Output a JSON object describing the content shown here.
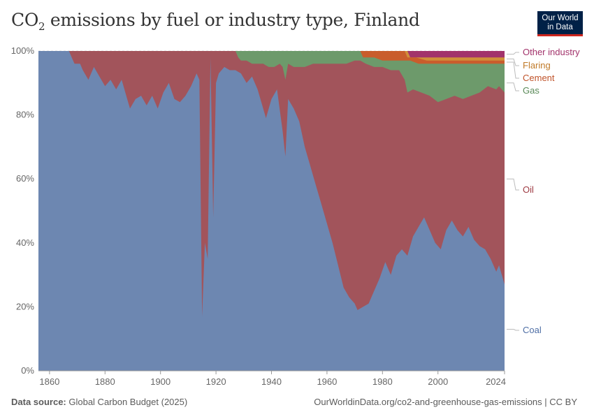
{
  "header": {
    "title_main": "CO",
    "title_sub": "2",
    "title_rest": " emissions by fuel or industry type, Finland"
  },
  "logo": {
    "line1": "Our World",
    "line2": "in Data"
  },
  "footer": {
    "source_label": "Data source:",
    "source_value": " Global Carbon Budget (2025)",
    "url": "OurWorldinData.org/co2-and-greenhouse-gas-emissions | CC BY"
  },
  "chart_data": {
    "type": "area",
    "stacked": true,
    "normalized": true,
    "x_ticks": [
      1860,
      1880,
      1900,
      1920,
      1940,
      1960,
      1980,
      2000,
      2024
    ],
    "y_ticks": [
      "0%",
      "20%",
      "40%",
      "60%",
      "80%",
      "100%"
    ],
    "xlim": [
      1856,
      2024
    ],
    "ylim": [
      0,
      100
    ],
    "grid": "horizontal dashed",
    "legend_placement": "right",
    "series": [
      {
        "name": "Coal",
        "color": "#6d87b1",
        "points": [
          [
            1856,
            100
          ],
          [
            1867,
            100
          ],
          [
            1868,
            98
          ],
          [
            1869,
            96
          ],
          [
            1871,
            96
          ],
          [
            1872,
            94
          ],
          [
            1874,
            91
          ],
          [
            1876,
            95
          ],
          [
            1878,
            92
          ],
          [
            1880,
            89
          ],
          [
            1882,
            91
          ],
          [
            1884,
            88
          ],
          [
            1886,
            91
          ],
          [
            1888,
            85
          ],
          [
            1889,
            82
          ],
          [
            1891,
            85
          ],
          [
            1893,
            86
          ],
          [
            1895,
            83
          ],
          [
            1897,
            86
          ],
          [
            1899,
            82
          ],
          [
            1901,
            87
          ],
          [
            1903,
            90
          ],
          [
            1905,
            85
          ],
          [
            1907,
            84
          ],
          [
            1909,
            86
          ],
          [
            1911,
            89
          ],
          [
            1913,
            93
          ],
          [
            1914,
            91
          ],
          [
            1915,
            17
          ],
          [
            1916,
            40
          ],
          [
            1917,
            35
          ],
          [
            1918,
            98
          ],
          [
            1919,
            48
          ],
          [
            1920,
            90
          ],
          [
            1921,
            93
          ],
          [
            1923,
            95
          ],
          [
            1925,
            94
          ],
          [
            1927,
            94
          ],
          [
            1929,
            93
          ],
          [
            1931,
            90
          ],
          [
            1933,
            92
          ],
          [
            1935,
            88
          ],
          [
            1937,
            82
          ],
          [
            1938,
            79
          ],
          [
            1940,
            85
          ],
          [
            1942,
            88
          ],
          [
            1944,
            75
          ],
          [
            1945,
            67
          ],
          [
            1946,
            85
          ],
          [
            1948,
            82
          ],
          [
            1950,
            78
          ],
          [
            1952,
            70
          ],
          [
            1954,
            64
          ],
          [
            1956,
            58
          ],
          [
            1958,
            52
          ],
          [
            1960,
            46
          ],
          [
            1962,
            40
          ],
          [
            1964,
            33
          ],
          [
            1966,
            26
          ],
          [
            1968,
            23
          ],
          [
            1970,
            21
          ],
          [
            1971,
            19
          ],
          [
            1973,
            20
          ],
          [
            1975,
            21
          ],
          [
            1977,
            25
          ],
          [
            1979,
            29
          ],
          [
            1981,
            34
          ],
          [
            1983,
            30
          ],
          [
            1985,
            36
          ],
          [
            1987,
            38
          ],
          [
            1989,
            36
          ],
          [
            1991,
            42
          ],
          [
            1993,
            45
          ],
          [
            1995,
            48
          ],
          [
            1997,
            44
          ],
          [
            1999,
            40
          ],
          [
            2001,
            38
          ],
          [
            2003,
            44
          ],
          [
            2005,
            47
          ],
          [
            2007,
            44
          ],
          [
            2009,
            42
          ],
          [
            2011,
            45
          ],
          [
            2013,
            41
          ],
          [
            2015,
            39
          ],
          [
            2017,
            38
          ],
          [
            2019,
            35
          ],
          [
            2021,
            31
          ],
          [
            2022,
            33
          ],
          [
            2024,
            27
          ]
        ]
      },
      {
        "name": "Oil",
        "color": "#a2545b",
        "points": [
          [
            1856,
            100
          ],
          [
            1927,
            100
          ],
          [
            1928,
            98
          ],
          [
            1929,
            97
          ],
          [
            1931,
            97
          ],
          [
            1933,
            96
          ],
          [
            1935,
            96
          ],
          [
            1937,
            96
          ],
          [
            1939,
            95
          ],
          [
            1941,
            95
          ],
          [
            1943,
            96
          ],
          [
            1944,
            95
          ],
          [
            1945,
            91
          ],
          [
            1946,
            96
          ],
          [
            1948,
            95
          ],
          [
            1950,
            95
          ],
          [
            1952,
            95
          ],
          [
            1955,
            96
          ],
          [
            1958,
            96
          ],
          [
            1961,
            96
          ],
          [
            1964,
            96
          ],
          [
            1967,
            96
          ],
          [
            1970,
            97
          ],
          [
            1972,
            97
          ],
          [
            1974,
            96
          ],
          [
            1977,
            95
          ],
          [
            1980,
            95
          ],
          [
            1983,
            94
          ],
          [
            1986,
            94
          ],
          [
            1988,
            91
          ],
          [
            1989,
            87
          ],
          [
            1991,
            88
          ],
          [
            1994,
            87
          ],
          [
            1997,
            86
          ],
          [
            2000,
            84
          ],
          [
            2003,
            85
          ],
          [
            2006,
            86
          ],
          [
            2009,
            85
          ],
          [
            2012,
            86
          ],
          [
            2015,
            87
          ],
          [
            2018,
            89
          ],
          [
            2021,
            88
          ],
          [
            2022,
            89
          ],
          [
            2024,
            87
          ]
        ]
      },
      {
        "name": "Gas",
        "color": "#6d9a6b",
        "points": [
          [
            1856,
            100
          ],
          [
            1972,
            100
          ],
          [
            1973,
            98
          ],
          [
            1977,
            98
          ],
          [
            1980,
            97
          ],
          [
            1983,
            97
          ],
          [
            1986,
            97
          ],
          [
            1989,
            97
          ],
          [
            1990,
            97
          ],
          [
            1993,
            96
          ],
          [
            1996,
            96
          ],
          [
            1999,
            96
          ],
          [
            2002,
            96
          ],
          [
            2005,
            96
          ],
          [
            2008,
            96
          ],
          [
            2011,
            96
          ],
          [
            2014,
            96
          ],
          [
            2017,
            96
          ],
          [
            2020,
            96
          ],
          [
            2022,
            96
          ],
          [
            2024,
            96
          ]
        ]
      },
      {
        "name": "Cement",
        "color": "#c95d2c",
        "points": [
          [
            1856,
            100
          ],
          [
            1988,
            100
          ],
          [
            1989,
            98
          ],
          [
            1992,
            98
          ],
          [
            1996,
            97
          ],
          [
            2000,
            97
          ],
          [
            2004,
            97
          ],
          [
            2008,
            97
          ],
          [
            2012,
            97
          ],
          [
            2016,
            97
          ],
          [
            2020,
            97
          ],
          [
            2024,
            97
          ]
        ]
      },
      {
        "name": "Flaring",
        "color": "#d08f3a",
        "points": [
          [
            1856,
            100
          ],
          [
            1989,
            100
          ],
          [
            1990,
            98
          ],
          [
            2000,
            98
          ],
          [
            2010,
            98
          ],
          [
            2020,
            98
          ],
          [
            2024,
            98
          ]
        ]
      },
      {
        "name": "Other industry",
        "color": "#a2336b",
        "points": [
          [
            1856,
            100
          ],
          [
            2024,
            100
          ]
        ]
      }
    ],
    "legend": [
      {
        "label": "Other industry",
        "color": "#a2336b"
      },
      {
        "label": "Flaring",
        "color": "#c07a28"
      },
      {
        "label": "Cement",
        "color": "#c0532a"
      },
      {
        "label": "Gas",
        "color": "#5a8a58"
      },
      {
        "label": "Oil",
        "color": "#9e3a42"
      },
      {
        "label": "Coal",
        "color": "#4e6ea5"
      }
    ],
    "legend_anchor_values": [
      99,
      97.5,
      96.5,
      90,
      60,
      13
    ]
  }
}
